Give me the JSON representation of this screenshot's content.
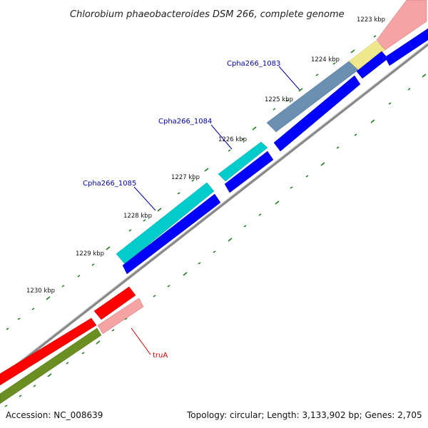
{
  "title": "Chlorobium phaeobacteroides DSM 266, complete genome",
  "footer": {
    "accession": "Accession: NC_008639",
    "topology": "Topology: circular; Length: 3,133,902 bp; Genes: 2,705"
  },
  "kbp_labels": [
    "1223 kbp",
    "1224 kbp",
    "1225 kbp",
    "1226 kbp",
    "1227 kbp",
    "1228 kbp",
    "1229 kbp",
    "1230 kbp"
  ],
  "gene_labels": [
    {
      "id": "cpha1083",
      "text": "Cpha266_1083"
    },
    {
      "id": "cpha1084",
      "text": "Cpha266_1084"
    },
    {
      "id": "cpha1085",
      "text": "Cpha266_1085"
    },
    {
      "id": "trua",
      "text": "truA"
    }
  ],
  "colors": {
    "cds": "#0000ff",
    "trna_like": "#00cccc",
    "rrna_like": "#ff0000",
    "misc": "#f5a3a3",
    "gene_highlight": "#f0e68c",
    "backbone": "#888888",
    "tick": "#1a7a1a",
    "gc": "#6b8e23"
  }
}
